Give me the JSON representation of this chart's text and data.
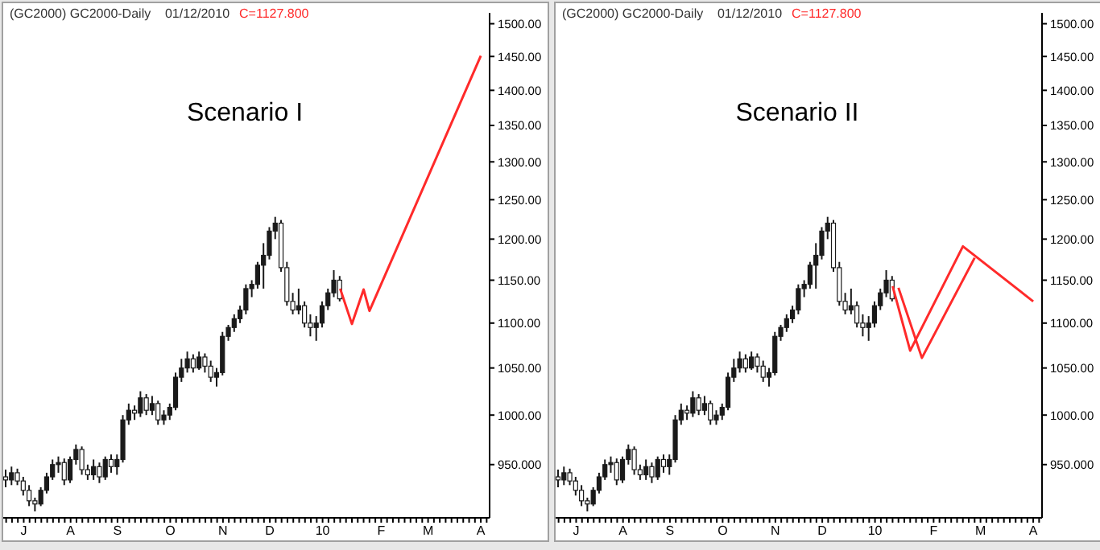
{
  "chart_data": [
    {
      "type": "candlestick",
      "title": "Scenario I",
      "subtitle": "(GC2000) GC2000-Daily    01/12/2010",
      "annotations": [
        "C=1127.800"
      ],
      "log": "y",
      "color": "#1a1a1a",
      "categories": [
        null,
        null,
        null,
        "J",
        null,
        null,
        null,
        null,
        null,
        null,
        null,
        "A",
        null,
        null,
        null,
        null,
        null,
        null,
        null,
        "S",
        null,
        null,
        null,
        null,
        null,
        null,
        null,
        null,
        "O",
        null,
        null,
        null,
        null,
        null,
        null,
        null,
        null,
        "N",
        null,
        null,
        null,
        null,
        null,
        null,
        null,
        "D",
        null,
        null,
        null,
        null,
        null,
        null,
        null,
        null,
        "10",
        null,
        null,
        null,
        null,
        null,
        null,
        null,
        null,
        null,
        "F",
        null,
        null,
        null,
        null,
        null,
        null,
        null,
        "M",
        null,
        null,
        null,
        null,
        null,
        null,
        null,
        null,
        "A",
        null
      ],
      "ohlc": [
        [
          938,
          945,
          928,
          935
        ],
        [
          935,
          948,
          930,
          942
        ],
        [
          942,
          946,
          930,
          934
        ],
        [
          934,
          938,
          920,
          925
        ],
        [
          925,
          930,
          910,
          915
        ],
        [
          915,
          918,
          905,
          912
        ],
        [
          912,
          928,
          910,
          925
        ],
        [
          925,
          942,
          922,
          938
        ],
        [
          938,
          955,
          935,
          950
        ],
        [
          950,
          958,
          942,
          952
        ],
        [
          952,
          956,
          930,
          935
        ],
        [
          935,
          958,
          932,
          955
        ],
        [
          955,
          970,
          950,
          965
        ],
        [
          965,
          968,
          940,
          945
        ],
        [
          945,
          950,
          935,
          940
        ],
        [
          940,
          955,
          935,
          948
        ],
        [
          948,
          952,
          932,
          938
        ],
        [
          938,
          958,
          935,
          955
        ],
        [
          955,
          960,
          942,
          948
        ],
        [
          948,
          960,
          940,
          955
        ],
        [
          955,
          1000,
          952,
          995
        ],
        [
          995,
          1012,
          990,
          1005
        ],
        [
          1005,
          1010,
          995,
          1002
        ],
        [
          1002,
          1025,
          998,
          1018
        ],
        [
          1018,
          1022,
          1000,
          1005
        ],
        [
          1005,
          1020,
          1000,
          1012
        ],
        [
          1012,
          1015,
          990,
          995
        ],
        [
          995,
          1005,
          990,
          1000
        ],
        [
          1000,
          1012,
          995,
          1008
        ],
        [
          1008,
          1045,
          1005,
          1040
        ],
        [
          1040,
          1060,
          1035,
          1050
        ],
        [
          1050,
          1068,
          1045,
          1060
        ],
        [
          1060,
          1065,
          1045,
          1050
        ],
        [
          1050,
          1068,
          1048,
          1062
        ],
        [
          1062,
          1066,
          1045,
          1052
        ],
        [
          1052,
          1058,
          1035,
          1040
        ],
        [
          1040,
          1050,
          1030,
          1045
        ],
        [
          1045,
          1090,
          1042,
          1085
        ],
        [
          1085,
          1098,
          1080,
          1095
        ],
        [
          1095,
          1110,
          1090,
          1105
        ],
        [
          1105,
          1120,
          1100,
          1115
        ],
        [
          1115,
          1145,
          1110,
          1140
        ],
        [
          1140,
          1150,
          1130,
          1145
        ],
        [
          1145,
          1172,
          1140,
          1168
        ],
        [
          1168,
          1195,
          1140,
          1180
        ],
        [
          1180,
          1215,
          1175,
          1210
        ],
        [
          1210,
          1228,
          1200,
          1220
        ],
        [
          1220,
          1224,
          1160,
          1165
        ],
        [
          1165,
          1172,
          1120,
          1125
        ],
        [
          1125,
          1135,
          1110,
          1115
        ],
        [
          1115,
          1140,
          1110,
          1120
        ],
        [
          1120,
          1125,
          1095,
          1100
        ],
        [
          1100,
          1110,
          1085,
          1095
        ],
        [
          1095,
          1108,
          1080,
          1100
        ],
        [
          1100,
          1125,
          1095,
          1120
        ],
        [
          1120,
          1140,
          1115,
          1135
        ],
        [
          1135,
          1162,
          1130,
          1150
        ],
        [
          1150,
          1155,
          1125,
          1128
        ],
        null,
        null,
        null,
        null,
        null,
        null,
        null,
        null,
        null,
        null,
        null,
        null,
        null,
        null,
        null,
        null,
        null,
        null,
        null,
        null,
        null,
        null,
        null,
        null,
        null
      ],
      "series": [
        {
          "type": "line",
          "color": "#ff2a2a",
          "values": [
            null,
            null,
            null,
            null,
            null,
            null,
            null,
            null,
            null,
            null,
            null,
            null,
            null,
            null,
            null,
            null,
            null,
            null,
            null,
            null,
            null,
            null,
            null,
            null,
            null,
            null,
            null,
            null,
            null,
            null,
            null,
            null,
            null,
            null,
            null,
            null,
            null,
            null,
            null,
            null,
            null,
            null,
            null,
            null,
            null,
            null,
            null,
            null,
            null,
            null,
            null,
            null,
            null,
            null,
            null,
            null,
            null,
            1140,
            null,
            1099,
            null,
            1139,
            1114,
            null,
            null,
            null,
            null,
            null,
            null,
            null,
            null,
            null,
            null,
            null,
            null,
            null,
            null,
            null,
            null,
            null,
            null,
            1451,
            null
          ]
        }
      ],
      "ylim": [
        899,
        1517
      ],
      "yticks": [
        {
          "value": 950,
          "label": "950.000"
        },
        {
          "value": 1000,
          "label": "1000.00"
        },
        {
          "value": 1050,
          "label": "1050.00"
        },
        {
          "value": 1100,
          "label": "1100.00"
        },
        {
          "value": 1150,
          "label": "1150.00"
        },
        {
          "value": 1200,
          "label": "1200.00"
        },
        {
          "value": 1250,
          "label": "1250.00"
        },
        {
          "value": 1300,
          "label": "1300.00"
        },
        {
          "value": 1350,
          "label": "1350.00"
        },
        {
          "value": 1400,
          "label": "1400.00"
        },
        {
          "value": 1450,
          "label": "1450.00"
        },
        {
          "value": 1500,
          "label": "1500.00"
        }
      ]
    },
    {
      "type": "candlestick",
      "title": "Scenario II",
      "subtitle": "(GC2000) GC2000-Daily    01/12/2010",
      "annotations": [
        "C=1127.800"
      ],
      "log": "y",
      "color": "#1a1a1a",
      "categories": [
        null,
        null,
        null,
        "J",
        null,
        null,
        null,
        null,
        null,
        null,
        null,
        "A",
        null,
        null,
        null,
        null,
        null,
        null,
        null,
        "S",
        null,
        null,
        null,
        null,
        null,
        null,
        null,
        null,
        "O",
        null,
        null,
        null,
        null,
        null,
        null,
        null,
        null,
        "N",
        null,
        null,
        null,
        null,
        null,
        null,
        null,
        "D",
        null,
        null,
        null,
        null,
        null,
        null,
        null,
        null,
        "10",
        null,
        null,
        null,
        null,
        null,
        null,
        null,
        null,
        null,
        "F",
        null,
        null,
        null,
        null,
        null,
        null,
        null,
        "M",
        null,
        null,
        null,
        null,
        null,
        null,
        null,
        null,
        "A",
        null
      ],
      "ohlc": [
        [
          938,
          945,
          928,
          935
        ],
        [
          935,
          948,
          930,
          942
        ],
        [
          942,
          946,
          930,
          934
        ],
        [
          934,
          938,
          920,
          925
        ],
        [
          925,
          930,
          910,
          915
        ],
        [
          915,
          918,
          905,
          912
        ],
        [
          912,
          928,
          910,
          925
        ],
        [
          925,
          942,
          922,
          938
        ],
        [
          938,
          955,
          935,
          950
        ],
        [
          950,
          958,
          942,
          952
        ],
        [
          952,
          956,
          930,
          935
        ],
        [
          935,
          958,
          932,
          955
        ],
        [
          955,
          970,
          950,
          965
        ],
        [
          965,
          968,
          940,
          945
        ],
        [
          945,
          950,
          935,
          940
        ],
        [
          940,
          955,
          935,
          948
        ],
        [
          948,
          952,
          932,
          938
        ],
        [
          938,
          958,
          935,
          955
        ],
        [
          955,
          960,
          942,
          948
        ],
        [
          948,
          960,
          940,
          955
        ],
        [
          955,
          1000,
          952,
          995
        ],
        [
          995,
          1012,
          990,
          1005
        ],
        [
          1005,
          1010,
          995,
          1002
        ],
        [
          1002,
          1025,
          998,
          1018
        ],
        [
          1018,
          1022,
          1000,
          1005
        ],
        [
          1005,
          1020,
          1000,
          1012
        ],
        [
          1012,
          1015,
          990,
          995
        ],
        [
          995,
          1005,
          990,
          1000
        ],
        [
          1000,
          1012,
          995,
          1008
        ],
        [
          1008,
          1045,
          1005,
          1040
        ],
        [
          1040,
          1060,
          1035,
          1050
        ],
        [
          1050,
          1068,
          1045,
          1060
        ],
        [
          1060,
          1065,
          1045,
          1050
        ],
        [
          1050,
          1068,
          1048,
          1062
        ],
        [
          1062,
          1066,
          1045,
          1052
        ],
        [
          1052,
          1058,
          1035,
          1040
        ],
        [
          1040,
          1050,
          1030,
          1045
        ],
        [
          1045,
          1090,
          1042,
          1085
        ],
        [
          1085,
          1098,
          1080,
          1095
        ],
        [
          1095,
          1110,
          1090,
          1105
        ],
        [
          1105,
          1120,
          1100,
          1115
        ],
        [
          1115,
          1145,
          1110,
          1140
        ],
        [
          1140,
          1150,
          1130,
          1145
        ],
        [
          1145,
          1172,
          1140,
          1168
        ],
        [
          1168,
          1195,
          1140,
          1180
        ],
        [
          1180,
          1215,
          1175,
          1210
        ],
        [
          1210,
          1228,
          1200,
          1220
        ],
        [
          1220,
          1224,
          1160,
          1165
        ],
        [
          1165,
          1172,
          1120,
          1125
        ],
        [
          1125,
          1135,
          1110,
          1115
        ],
        [
          1115,
          1140,
          1110,
          1120
        ],
        [
          1120,
          1125,
          1095,
          1100
        ],
        [
          1100,
          1110,
          1085,
          1095
        ],
        [
          1095,
          1108,
          1080,
          1100
        ],
        [
          1100,
          1125,
          1095,
          1120
        ],
        [
          1120,
          1140,
          1115,
          1135
        ],
        [
          1135,
          1162,
          1130,
          1150
        ],
        [
          1150,
          1155,
          1125,
          1128
        ],
        null,
        null,
        null,
        null,
        null,
        null,
        null,
        null,
        null,
        null,
        null,
        null,
        null,
        null,
        null,
        null,
        null,
        null,
        null,
        null,
        null,
        null,
        null,
        null,
        null
      ],
      "series": [
        {
          "type": "line",
          "color": "#ff2a2a",
          "values": [
            null,
            null,
            null,
            null,
            null,
            null,
            null,
            null,
            null,
            null,
            null,
            null,
            null,
            null,
            null,
            null,
            null,
            null,
            null,
            null,
            null,
            null,
            null,
            null,
            null,
            null,
            null,
            null,
            null,
            null,
            null,
            null,
            null,
            null,
            null,
            null,
            null,
            null,
            null,
            null,
            null,
            null,
            null,
            null,
            null,
            null,
            null,
            null,
            null,
            null,
            null,
            null,
            null,
            null,
            null,
            null,
            null,
            1143,
            null,
            null,
            1069,
            null,
            null,
            null,
            null,
            null,
            null,
            null,
            null,
            1191,
            null,
            null,
            null,
            null,
            null,
            null,
            null,
            null,
            null,
            null,
            null,
            1125,
            null
          ]
        },
        {
          "type": "line",
          "color": "#ff2a2a",
          "values": [
            null,
            null,
            null,
            null,
            null,
            null,
            null,
            null,
            null,
            null,
            null,
            null,
            null,
            null,
            null,
            null,
            null,
            null,
            null,
            null,
            null,
            null,
            null,
            null,
            null,
            null,
            null,
            null,
            null,
            null,
            null,
            null,
            null,
            null,
            null,
            null,
            null,
            null,
            null,
            null,
            null,
            null,
            null,
            null,
            null,
            null,
            null,
            null,
            null,
            null,
            null,
            null,
            null,
            null,
            null,
            null,
            null,
            null,
            1141,
            null,
            null,
            null,
            1061,
            null,
            null,
            null,
            null,
            null,
            null,
            null,
            null,
            1177,
            null,
            null,
            null,
            null,
            null,
            null,
            null,
            null,
            null,
            null,
            null
          ]
        }
      ],
      "ylim": [
        899,
        1517
      ],
      "yticks": [
        {
          "value": 950,
          "label": "950.000"
        },
        {
          "value": 1000,
          "label": "1000.00"
        },
        {
          "value": 1050,
          "label": "1050.00"
        },
        {
          "value": 1100,
          "label": "1100.00"
        },
        {
          "value": 1150,
          "label": "1150.00"
        },
        {
          "value": 1200,
          "label": "1200.00"
        },
        {
          "value": 1250,
          "label": "1250.00"
        },
        {
          "value": 1300,
          "label": "1300.00"
        },
        {
          "value": 1350,
          "label": "1350.00"
        },
        {
          "value": 1400,
          "label": "1400.00"
        },
        {
          "value": 1450,
          "label": "1450.00"
        },
        {
          "value": 1500,
          "label": "1500.00"
        }
      ]
    }
  ]
}
